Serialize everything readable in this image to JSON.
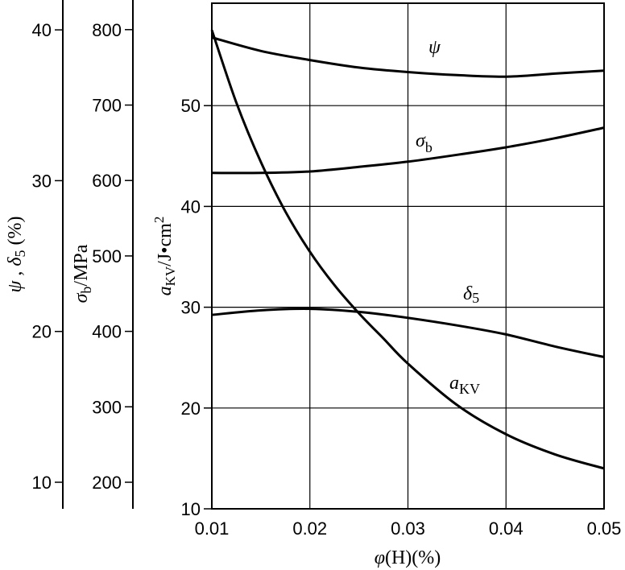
{
  "chart_data": {
    "type": "line",
    "x_axis": {
      "label_symbol": "φ",
      "label_rest": "(H)(%)",
      "ticks": [
        "0.01",
        "0.02",
        "0.03",
        "0.04",
        "0.05"
      ],
      "range": [
        0.01,
        0.05
      ]
    },
    "y_axes": {
      "psi_delta": {
        "label_symbol_1": "ψ",
        "label_sep": " , ",
        "label_symbol_2": "δ",
        "label_sub_2": "5",
        "label_rest": " (%)",
        "ticks": [
          10,
          20,
          30,
          40
        ],
        "tick_labels": [
          "10",
          "20",
          "30",
          "40"
        ]
      },
      "sigma_b": {
        "label_symbol": "σ",
        "label_sub": "b",
        "label_rest": "/MPa",
        "ticks": [
          200,
          300,
          400,
          500,
          600,
          700,
          800
        ],
        "tick_labels": [
          "200",
          "300",
          "400",
          "500",
          "600",
          "700",
          "800"
        ]
      },
      "akv": {
        "label_symbol": "a",
        "label_sub": "KV",
        "label_rest": "/J•cm",
        "label_sup": "2",
        "ticks": [
          10,
          20,
          30,
          40,
          50
        ],
        "tick_labels": [
          "10",
          "20",
          "30",
          "40",
          "50"
        ],
        "range": [
          10,
          60
        ]
      }
    },
    "series": [
      {
        "name_symbol": "ψ",
        "name_sub": "",
        "axis": "psi_delta",
        "x": [
          0.01,
          0.015,
          0.02,
          0.025,
          0.03,
          0.035,
          0.04,
          0.045,
          0.05
        ],
        "y": [
          39.5,
          38.6,
          38.0,
          37.5,
          37.2,
          37.0,
          36.9,
          37.1,
          37.3
        ]
      },
      {
        "name_symbol": "σ",
        "name_sub": "b",
        "axis": "sigma_b",
        "x": [
          0.01,
          0.015,
          0.02,
          0.025,
          0.03,
          0.035,
          0.04,
          0.045,
          0.05
        ],
        "y": [
          610,
          610,
          612,
          618,
          625,
          634,
          644,
          656,
          670
        ]
      },
      {
        "name_symbol": "δ",
        "name_sub": "5",
        "axis": "psi_delta",
        "x": [
          0.01,
          0.015,
          0.02,
          0.025,
          0.03,
          0.035,
          0.04,
          0.045,
          0.05
        ],
        "y": [
          21.1,
          21.4,
          21.5,
          21.3,
          20.9,
          20.4,
          19.8,
          19.0,
          18.3
        ]
      },
      {
        "name_symbol": "a",
        "name_sub": "KV",
        "axis": "akv",
        "x": [
          0.01,
          0.0125,
          0.015,
          0.0175,
          0.02,
          0.0225,
          0.025,
          0.0275,
          0.03,
          0.035,
          0.04,
          0.045,
          0.05
        ],
        "y": [
          57.5,
          50.3,
          44.4,
          39.5,
          35.5,
          32.2,
          29.4,
          26.9,
          24.4,
          20.3,
          17.4,
          15.4,
          14.0
        ]
      }
    ],
    "grid": true
  }
}
